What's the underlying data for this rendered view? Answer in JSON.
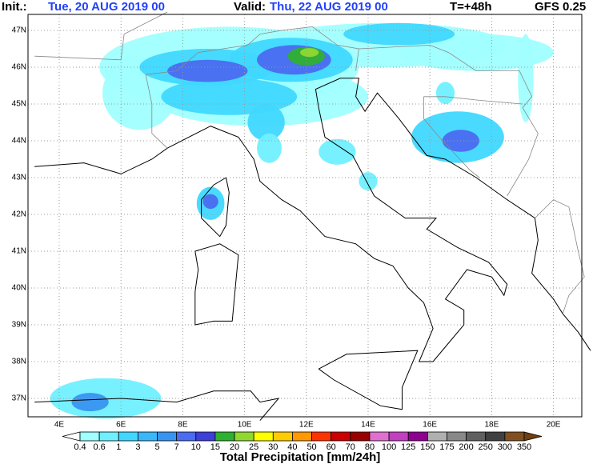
{
  "header": {
    "init_label": "Init.:",
    "init": "Tue, 20 AUG 2019  00",
    "valid_label": "Valid:",
    "valid": "Thu, 22 AUG 2019  00",
    "step": "T=+48h",
    "model": "GFS 0.25"
  },
  "map": {
    "lat_labels": [
      "47N",
      "46N",
      "45N",
      "44N",
      "43N",
      "42N",
      "41N",
      "40N",
      "39N",
      "38N",
      "37N"
    ],
    "lon_labels": [
      "4E",
      "6E",
      "8E",
      "10E",
      "12E",
      "14E",
      "16E",
      "18E",
      "20E"
    ]
  },
  "colorbar": {
    "levels": [
      "0.4",
      "0.6",
      "1",
      "3",
      "5",
      "7",
      "10",
      "15",
      "20",
      "25",
      "30",
      "40",
      "50",
      "60",
      "70",
      "80",
      "100",
      "125",
      "150",
      "175",
      "200",
      "250",
      "300",
      "350"
    ],
    "colors": [
      "#ffffff",
      "#a0ffff",
      "#70f0ff",
      "#40d8ff",
      "#38b8f8",
      "#3894f0",
      "#4a6cf0",
      "#3e3ed8",
      "#30b030",
      "#90d830",
      "#ffff00",
      "#ffcc00",
      "#ff9900",
      "#ff3300",
      "#cc0000",
      "#990000",
      "#e070d0",
      "#c040c0",
      "#900090",
      "#b0b0b0",
      "#888888",
      "#606060",
      "#404040",
      "#805020",
      "#704010"
    ],
    "title": "Total Precipitation [mm/24h]"
  }
}
